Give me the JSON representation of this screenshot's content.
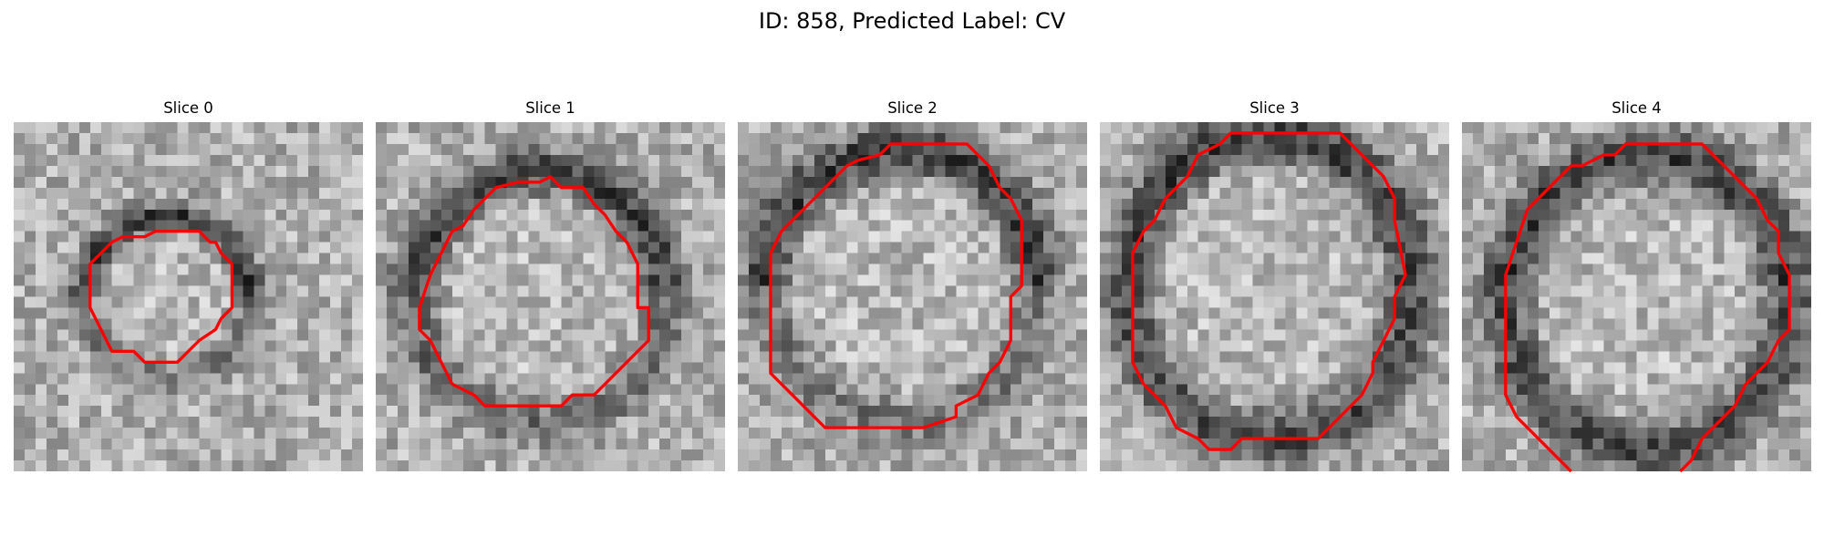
{
  "figure": {
    "title": "ID: 858, Predicted Label: CV"
  },
  "panels": [
    {
      "title": "Slice 0",
      "contour_color": "#ff0000"
    },
    {
      "title": "Slice 1",
      "contour_color": "#ff0000"
    },
    {
      "title": "Slice 2",
      "contour_color": "#ff0000"
    },
    {
      "title": "Slice 3",
      "contour_color": "#ff0000"
    },
    {
      "title": "Slice 4",
      "contour_color": "#ff0000"
    }
  ],
  "colormap": "gray"
}
